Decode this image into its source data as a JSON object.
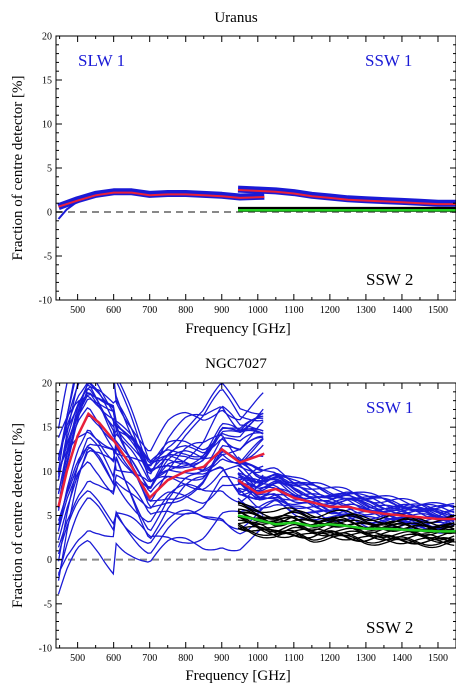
{
  "chart_data": [
    {
      "type": "line",
      "title": "Uranus",
      "xlabel": "Frequency [GHz]",
      "ylabel": "Fraction of centre detector [%]",
      "xlim": [
        440,
        1550
      ],
      "ylim": [
        -10,
        20
      ],
      "x_ticks": [
        500,
        600,
        700,
        800,
        900,
        1000,
        1100,
        1200,
        1300,
        1400,
        1500
      ],
      "y_ticks": [
        -10,
        -5,
        0,
        5,
        10,
        15,
        20
      ],
      "annotations": [
        "SLW 1",
        "SSW 1",
        "SSW 2"
      ],
      "colors": {
        "slw1": "#1a1ad6",
        "ssw1": "#1a1ad6",
        "ssw2": "#000000",
        "mean": "#e8203a",
        "mean_ssw2": "#22cc22",
        "zero": "#888888"
      },
      "series": [
        {
          "group": "SLW 1 detectors",
          "x": [
            447,
            500,
            550,
            600,
            650,
            700,
            750,
            800,
            850,
            900,
            950,
            1018
          ],
          "y": [
            0.6,
            1.4,
            2.0,
            2.3,
            2.3,
            2.0,
            2.1,
            2.1,
            2.0,
            1.9,
            1.7,
            1.8
          ]
        },
        {
          "group": "SLW 1 mean",
          "x": [
            447,
            500,
            550,
            600,
            650,
            700,
            750,
            800,
            850,
            900,
            950,
            1018
          ],
          "y": [
            0.6,
            1.3,
            1.9,
            2.2,
            2.2,
            1.9,
            2.0,
            2.0,
            1.9,
            1.8,
            1.6,
            1.7
          ]
        },
        {
          "group": "SSW 1 detectors",
          "x": [
            945,
            1000,
            1050,
            1100,
            1150,
            1200,
            1250,
            1300,
            1350,
            1400,
            1450,
            1500,
            1550
          ],
          "y": [
            2.6,
            2.5,
            2.4,
            2.2,
            1.9,
            1.7,
            1.5,
            1.4,
            1.3,
            1.2,
            1.1,
            1.0,
            1.0
          ]
        },
        {
          "group": "SSW 1 mean",
          "x": [
            945,
            1000,
            1050,
            1100,
            1150,
            1200,
            1250,
            1300,
            1350,
            1400,
            1450,
            1500,
            1550
          ],
          "y": [
            2.5,
            2.4,
            2.3,
            2.1,
            1.8,
            1.6,
            1.4,
            1.3,
            1.2,
            1.1,
            1.0,
            0.9,
            0.9
          ]
        },
        {
          "group": "SSW 2 detectors",
          "x": [
            945,
            1000,
            1100,
            1200,
            1300,
            1400,
            1500,
            1550
          ],
          "y": [
            0.3,
            0.3,
            0.3,
            0.3,
            0.3,
            0.3,
            0.3,
            0.3
          ]
        },
        {
          "group": "SSW 2 mean",
          "x": [
            945,
            1000,
            1100,
            1200,
            1300,
            1400,
            1500,
            1550
          ],
          "y": [
            0.2,
            0.2,
            0.2,
            0.2,
            0.2,
            0.2,
            0.2,
            0.2
          ]
        }
      ]
    },
    {
      "type": "line",
      "title": "NGC7027",
      "xlabel": "Frequency [GHz]",
      "ylabel": "Fraction of centre detector [%]",
      "xlim": [
        440,
        1550
      ],
      "ylim": [
        -10,
        20
      ],
      "x_ticks": [
        500,
        600,
        700,
        800,
        900,
        1000,
        1100,
        1200,
        1300,
        1400,
        1500
      ],
      "y_ticks": [
        -10,
        -5,
        0,
        5,
        10,
        15,
        20
      ],
      "annotations": [
        "SSW 1",
        "SSW 2"
      ],
      "colors": {
        "slw1": "#1a1ad6",
        "ssw1": "#1a1ad6",
        "ssw2": "#000000",
        "mean": "#e8203a",
        "mean_ssw2": "#22cc22",
        "zero": "#888888"
      },
      "series": [
        {
          "group": "SLW 1 mean",
          "x": [
            447,
            470,
            500,
            530,
            560,
            600,
            650,
            700,
            750,
            800,
            850,
            900,
            950,
            1018
          ],
          "y": [
            6.0,
            10.0,
            14.0,
            16.5,
            15.5,
            13.5,
            10.5,
            7.0,
            9.0,
            10.0,
            10.5,
            12.5,
            11.0,
            12.0
          ]
        },
        {
          "group": "SSW 1 mean",
          "x": [
            945,
            1000,
            1050,
            1100,
            1150,
            1200,
            1250,
            1300,
            1350,
            1400,
            1450,
            1500,
            1550
          ],
          "y": [
            9.0,
            7.5,
            8.0,
            7.0,
            6.5,
            6.0,
            6.0,
            5.5,
            5.2,
            5.0,
            4.8,
            4.6,
            4.6
          ]
        },
        {
          "group": "SSW 2 mean",
          "x": [
            945,
            1000,
            1050,
            1100,
            1150,
            1200,
            1250,
            1300,
            1350,
            1400,
            1450,
            1500,
            1550
          ],
          "y": [
            5.0,
            4.5,
            4.0,
            4.2,
            3.8,
            4.0,
            3.8,
            3.5,
            3.5,
            3.4,
            3.3,
            3.2,
            3.2
          ]
        }
      ],
      "detector_spread": {
        "slw1": {
          "count": 30,
          "y_range_at_500": [
            -6,
            20
          ],
          "y_range_at_1000": [
            8,
            16
          ]
        },
        "ssw1": {
          "count": 25,
          "y_range": [
            4,
            10
          ]
        },
        "ssw2": {
          "count": 20,
          "y_range": [
            1.5,
            6
          ]
        }
      }
    }
  ]
}
